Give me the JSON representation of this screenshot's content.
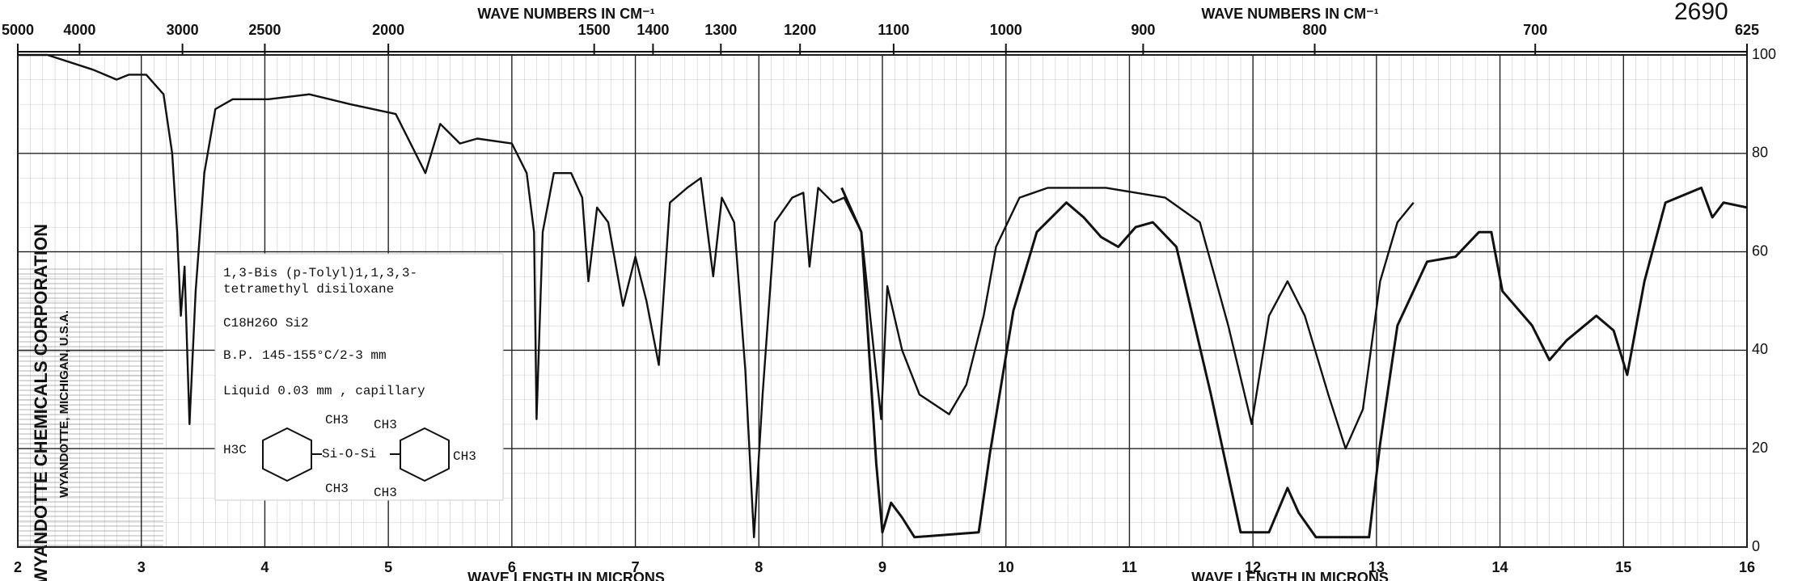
{
  "chart_data": {
    "type": "line",
    "top_axis_label": "WAVE NUMBERS IN CM⁻¹",
    "x_axis_label": "WAVE LENGTH IN MICRONS",
    "stamp": "2690",
    "xlim": [
      2,
      16
    ],
    "xticks": [
      2,
      3,
      4,
      5,
      6,
      7,
      8,
      9,
      10,
      11,
      12,
      13,
      14,
      15,
      16
    ],
    "top_ticks": [
      5000,
      4000,
      3000,
      2500,
      2000,
      1500,
      1400,
      1300,
      1200,
      1100,
      1000,
      900,
      800,
      700,
      625
    ],
    "ylim": [
      0,
      100
    ],
    "yticks": [
      0,
      20,
      40,
      60,
      80,
      100
    ],
    "grid": true,
    "series": [
      {
        "color": "#111111",
        "x": [
          2.0,
          2.24,
          2.61,
          2.8,
          2.9,
          3.04,
          3.18,
          3.25,
          3.29,
          3.32,
          3.35,
          3.39,
          3.44,
          3.51,
          3.6,
          3.74,
          4.03,
          4.36,
          4.69,
          5.06,
          5.3,
          5.42,
          5.58,
          5.72,
          6.0,
          6.12,
          6.18,
          6.2,
          6.25,
          6.34,
          6.48,
          6.57,
          6.62,
          6.69,
          6.78,
          6.9,
          7.0,
          7.09,
          7.19,
          7.28,
          7.42,
          7.53,
          7.63,
          7.7,
          7.8,
          7.89,
          7.96,
          8.03,
          8.13,
          8.27,
          8.36,
          8.41,
          8.48,
          8.6,
          8.69,
          8.83,
          8.93,
          8.99,
          9.04,
          9.16,
          9.3,
          9.54,
          9.68,
          9.82,
          9.92,
          10.11,
          10.34,
          10.81,
          11.29,
          11.57,
          11.8,
          11.99,
          12.13,
          12.28,
          12.42,
          12.61,
          12.75,
          12.89,
          13.03,
          13.17,
          13.3
        ],
        "values": [
          100,
          100,
          97,
          95,
          96,
          96,
          92,
          80,
          64,
          47,
          57,
          25,
          52,
          76,
          89,
          91,
          91,
          92,
          90,
          88,
          76,
          86,
          82,
          83,
          82,
          76,
          64,
          26,
          64,
          76,
          76,
          71,
          54,
          69,
          66,
          49,
          59,
          50,
          37,
          70,
          73,
          75,
          55,
          71,
          66,
          36,
          2,
          31,
          66,
          71,
          72,
          57,
          73,
          70,
          71,
          64,
          40,
          26,
          53,
          40,
          31,
          27,
          33,
          47,
          61,
          71,
          73,
          73,
          71,
          66,
          45,
          25,
          47,
          54,
          47,
          31,
          20,
          28,
          54,
          66,
          70
        ]
      },
      {
        "color": "#111111",
        "x": [
          8.67,
          8.83,
          8.95,
          9.0,
          9.07,
          9.16,
          9.26,
          9.78,
          9.87,
          10.06,
          10.25,
          10.49,
          10.63,
          10.77,
          10.91,
          11.05,
          11.19,
          11.38,
          11.66,
          11.9,
          12.13,
          12.28,
          12.37,
          12.51,
          12.94,
          13.03,
          13.17,
          13.41,
          13.64,
          13.83,
          13.93,
          14.02,
          14.26,
          14.4,
          14.54,
          14.78,
          14.92,
          15.03,
          15.17,
          15.34,
          15.63,
          15.72,
          15.81,
          16.0
        ],
        "values": [
          73,
          64,
          17,
          3,
          9,
          6,
          2,
          3,
          19,
          48,
          64,
          70,
          67,
          63,
          61,
          65,
          66,
          61,
          31,
          3,
          3,
          12,
          7,
          2,
          2,
          21,
          45,
          58,
          59,
          64,
          64,
          52,
          45,
          38,
          42,
          47,
          44,
          35,
          54,
          70,
          73,
          67,
          70,
          69
        ]
      }
    ]
  },
  "info": {
    "name_lines": [
      "1,3-Bis (p-Tolyl)1,1,3,3-",
      "tetramethyl disiloxane"
    ],
    "formula": "C18H26O Si2",
    "bp": "B.P. 145-155°C/2-3 mm",
    "sample": "Liquid 0.03 mm , capillary",
    "structure": [
      "H3C",
      "CH3",
      "CH3",
      "Si-O-Si",
      "CH3",
      "CH3",
      "CH3"
    ]
  },
  "corporation": [
    "WYANDOTTE CHEMICALS CORPORATION",
    "WYANDOTTE, MICHIGAN, U.S.A."
  ]
}
